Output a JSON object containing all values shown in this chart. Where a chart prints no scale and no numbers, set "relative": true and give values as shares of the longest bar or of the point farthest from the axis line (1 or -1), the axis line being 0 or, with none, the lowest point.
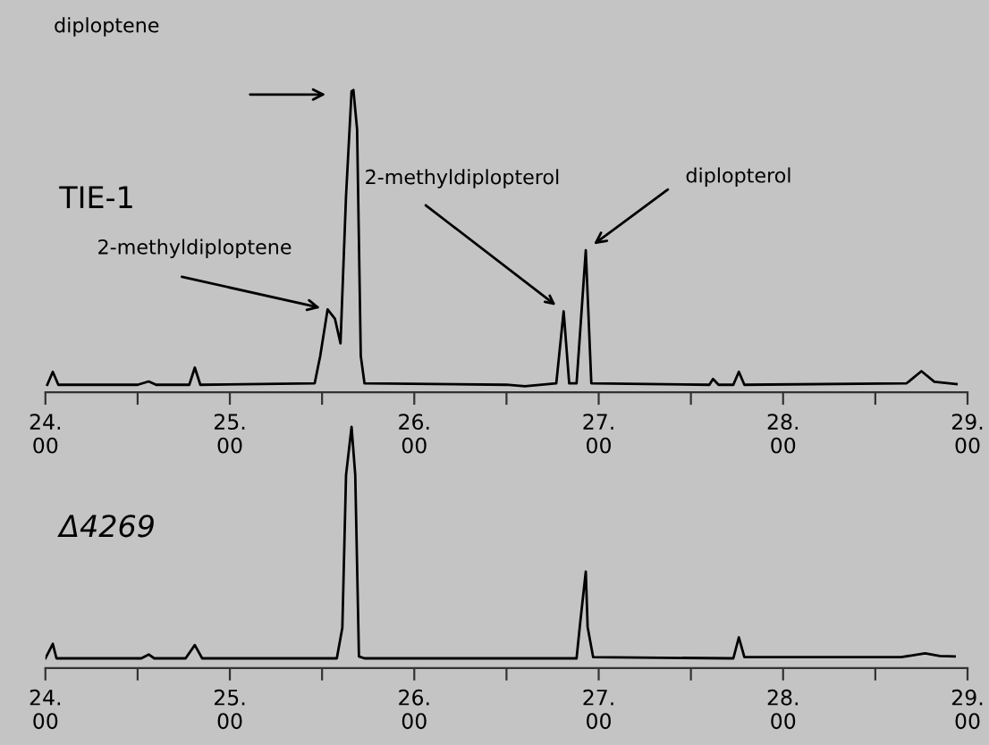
{
  "chart_data": [
    {
      "type": "line",
      "relative": true,
      "xlim": [
        24,
        29
      ],
      "xticks": [
        {
          "value": 24,
          "label": "24.00"
        },
        {
          "value": 24.5,
          "label": null
        },
        {
          "value": 25,
          "label": "25.00"
        },
        {
          "value": 25.5,
          "label": null
        },
        {
          "value": 26,
          "label": "26.00"
        },
        {
          "value": 26.5,
          "label": null
        },
        {
          "value": 27,
          "label": "27.00"
        },
        {
          "value": 27.5,
          "label": null
        },
        {
          "value": 28,
          "label": "28.00"
        },
        {
          "value": 28.5,
          "label": null
        },
        {
          "value": 29,
          "label": "29.00"
        }
      ],
      "tick_labels": "x",
      "grid": false,
      "legend": false,
      "marker": "none",
      "line_style": "solid",
      "series": [
        {
          "color": "#000000",
          "x": [
            24.01,
            24.04,
            24.07,
            24.5,
            24.56,
            24.6,
            24.78,
            24.81,
            24.84,
            25.46,
            25.49,
            25.53,
            25.57,
            25.6,
            25.63,
            25.66,
            25.67,
            25.69,
            25.71,
            25.73,
            26.5,
            26.6,
            26.77,
            26.81,
            26.84,
            26.88,
            26.93,
            26.96,
            27.6,
            27.62,
            27.65,
            27.73,
            27.76,
            27.79,
            28.67,
            28.75,
            28.82,
            28.94
          ],
          "values": [
            0.025,
            0.068,
            0.025,
            0.025,
            0.036,
            0.025,
            0.025,
            0.082,
            0.025,
            0.03,
            0.12,
            0.274,
            0.243,
            0.162,
            0.65,
            0.996,
            1.0,
            0.87,
            0.12,
            0.03,
            0.025,
            0.02,
            0.03,
            0.268,
            0.03,
            0.03,
            0.47,
            0.03,
            0.025,
            0.044,
            0.025,
            0.025,
            0.068,
            0.025,
            0.03,
            0.07,
            0.035,
            0.027
          ]
        }
      ],
      "annotations": [
        "diploptene",
        {
          "text": "2-methyldiploptene",
          "x": 25.53,
          "y": 0.274
        },
        {
          "text": "2-methyldiplopterol",
          "x": 26.81,
          "y": 0.268
        },
        {
          "text": "diplopterol",
          "x": 26.93,
          "y": 0.47
        },
        "TIE-1"
      ]
    },
    {
      "type": "line",
      "relative": true,
      "xlim": [
        24,
        29
      ],
      "xticks": [
        {
          "value": 24,
          "label": "24.00"
        },
        {
          "value": 24.5,
          "label": null
        },
        {
          "value": 25,
          "label": "25.00"
        },
        {
          "value": 25.5,
          "label": null
        },
        {
          "value": 26,
          "label": "26.00"
        },
        {
          "value": 26.5,
          "label": null
        },
        {
          "value": 27,
          "label": "27.00"
        },
        {
          "value": 27.5,
          "label": null
        },
        {
          "value": 28,
          "label": "28.00"
        },
        {
          "value": 28.5,
          "label": null
        },
        {
          "value": 29,
          "label": "29.00"
        }
      ],
      "tick_labels": "x",
      "grid": false,
      "legend": false,
      "marker": "none",
      "line_style": "solid",
      "series": [
        {
          "color": "#000000",
          "x": [
            24.0,
            24.04,
            24.06,
            24.52,
            24.56,
            24.59,
            24.76,
            24.81,
            24.85,
            25.58,
            25.61,
            25.63,
            25.66,
            25.68,
            25.7,
            25.73,
            26.88,
            26.9,
            26.93,
            26.94,
            26.97,
            27.73,
            27.76,
            27.79,
            28.64,
            28.77,
            28.85,
            28.93
          ],
          "values": [
            0.04,
            0.1,
            0.04,
            0.04,
            0.056,
            0.04,
            0.04,
            0.095,
            0.04,
            0.04,
            0.167,
            0.8,
            1.0,
            0.8,
            0.048,
            0.04,
            0.04,
            0.19,
            0.4,
            0.17,
            0.045,
            0.04,
            0.127,
            0.045,
            0.045,
            0.061,
            0.05,
            0.048
          ]
        }
      ],
      "annotations": [
        "Δ4269"
      ]
    }
  ]
}
